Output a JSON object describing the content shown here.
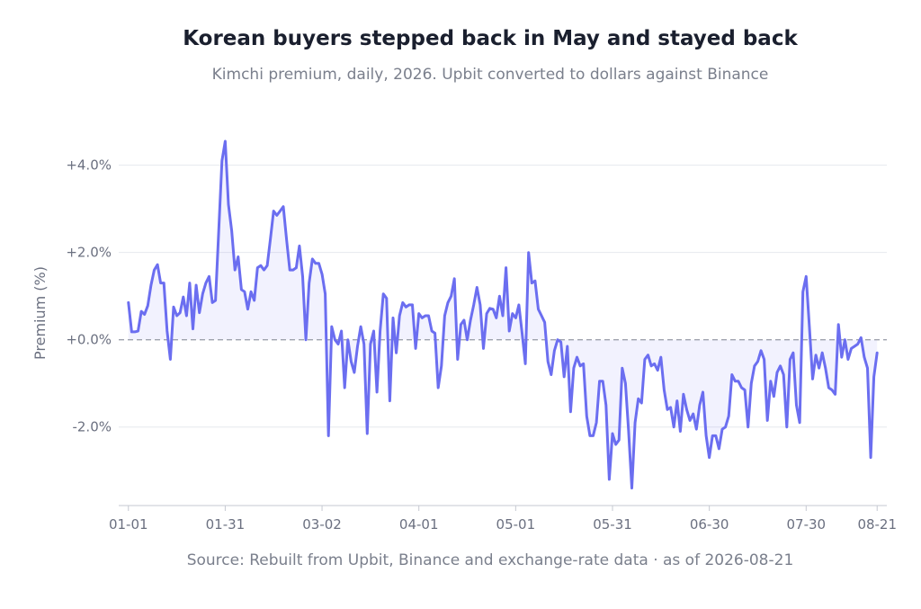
{
  "chart_data": {
    "type": "line",
    "title": "Korean buyers stepped back in May and stayed back",
    "subtitle": "Kimchi premium, daily, 2026. Upbit converted to dollars against Binance",
    "source": "Source: Rebuilt from Upbit, Binance and exchange-rate data  ·  as of 2026-08-21",
    "xlabel": "",
    "ylabel": "Premium (%)",
    "x_tick_labels": [
      "01-01",
      "01-31",
      "03-02",
      "04-01",
      "05-01",
      "05-31",
      "06-30",
      "07-30",
      "08-21"
    ],
    "x_tick_days": [
      0,
      30,
      60,
      90,
      120,
      150,
      180,
      210,
      232
    ],
    "y_tick_labels": [
      "+4.0%",
      "+2.0%",
      "+0.0%",
      "-2.0%"
    ],
    "y_tick_values": [
      4,
      2,
      0,
      -2
    ],
    "ylim": [
      -3.8,
      4.9
    ],
    "xlim_days": [
      -3,
      235
    ],
    "grid": true,
    "baseline": 0,
    "series": [
      {
        "color": "#6b6ef0",
        "fill_color": "#6b6ef0",
        "date_start": "2026-01-01",
        "values": [
          0.85,
          0.18,
          0.18,
          0.2,
          0.65,
          0.58,
          0.78,
          1.25,
          1.6,
          1.72,
          1.3,
          1.3,
          0.2,
          -0.45,
          0.75,
          0.55,
          0.62,
          0.98,
          0.55,
          1.3,
          0.25,
          1.25,
          0.62,
          1.05,
          1.3,
          1.45,
          0.85,
          0.9,
          2.5,
          4.1,
          4.55,
          3.1,
          2.5,
          1.6,
          1.9,
          1.15,
          1.1,
          0.7,
          1.1,
          0.9,
          1.65,
          1.7,
          1.6,
          1.7,
          2.3,
          2.95,
          2.85,
          2.95,
          3.05,
          2.3,
          1.6,
          1.6,
          1.65,
          2.15,
          1.45,
          0.0,
          1.3,
          1.85,
          1.75,
          1.75,
          1.5,
          1.05,
          -2.2,
          0.3,
          0.0,
          -0.1,
          0.2,
          -1.1,
          0.0,
          -0.5,
          -0.75,
          -0.15,
          0.3,
          -0.1,
          -2.15,
          -0.1,
          0.2,
          -1.2,
          0.2,
          1.05,
          0.95,
          -1.4,
          0.5,
          -0.3,
          0.55,
          0.85,
          0.75,
          0.8,
          0.8,
          -0.2,
          0.6,
          0.5,
          0.55,
          0.55,
          0.2,
          0.15,
          -1.1,
          -0.6,
          0.55,
          0.85,
          1.0,
          1.4,
          -0.45,
          0.35,
          0.45,
          0.0,
          0.45,
          0.8,
          1.2,
          0.8,
          -0.2,
          0.6,
          0.72,
          0.7,
          0.5,
          1.0,
          0.55,
          1.65,
          0.2,
          0.6,
          0.5,
          0.8,
          0.15,
          -0.55,
          2.0,
          1.3,
          1.35,
          0.7,
          0.55,
          0.4,
          -0.5,
          -0.8,
          -0.25,
          0.0,
          -0.05,
          -0.85,
          -0.15,
          -1.65,
          -0.65,
          -0.4,
          -0.6,
          -0.55,
          -1.75,
          -2.2,
          -2.2,
          -1.9,
          -0.95,
          -0.95,
          -1.5,
          -3.2,
          -2.15,
          -2.4,
          -2.3,
          -0.65,
          -1.0,
          -2.1,
          -3.4,
          -1.9,
          -1.35,
          -1.45,
          -0.45,
          -0.35,
          -0.6,
          -0.55,
          -0.7,
          -0.4,
          -1.15,
          -1.6,
          -1.55,
          -2.0,
          -1.4,
          -2.1,
          -1.25,
          -1.6,
          -1.85,
          -1.7,
          -2.05,
          -1.5,
          -1.2,
          -2.2,
          -2.7,
          -2.2,
          -2.2,
          -2.5,
          -2.05,
          -2.0,
          -1.75,
          -0.8,
          -0.95,
          -0.95,
          -1.1,
          -1.15,
          -2.0,
          -1.0,
          -0.6,
          -0.5,
          -0.25,
          -0.45,
          -1.85,
          -0.95,
          -1.3,
          -0.75,
          -0.6,
          -0.8,
          -2.0,
          -0.45,
          -0.3,
          -1.5,
          -1.9,
          1.1,
          1.45,
          0.3,
          -0.9,
          -0.35,
          -0.65,
          -0.3,
          -0.65,
          -1.1,
          -1.15,
          -1.25,
          0.35,
          -0.4,
          0.0,
          -0.45,
          -0.2,
          -0.15,
          -0.1,
          0.05,
          -0.4,
          -0.65,
          -2.7,
          -0.85,
          -0.3
        ]
      }
    ]
  }
}
